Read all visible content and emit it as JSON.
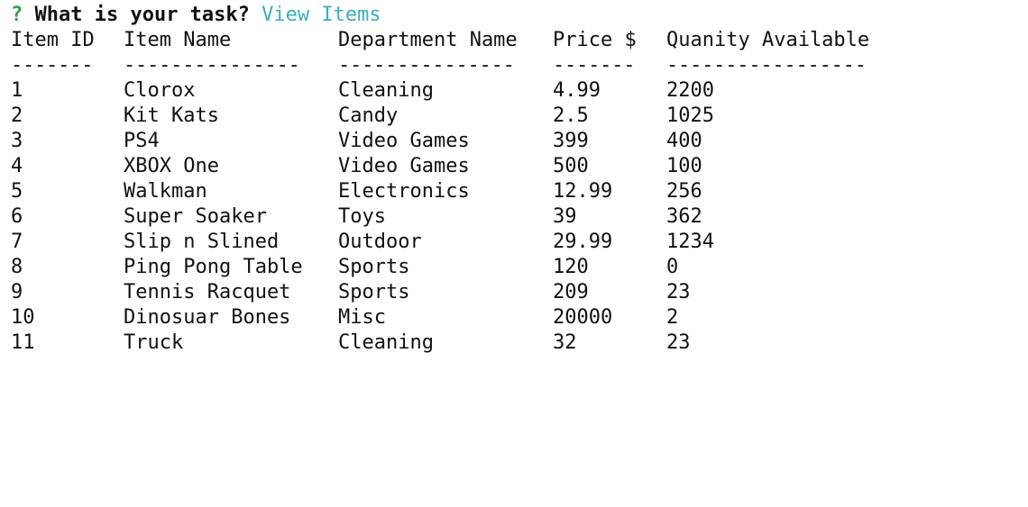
{
  "prompt": {
    "mark": "?",
    "question": "What is your task?",
    "answer": "View Items"
  },
  "table": {
    "headers": [
      "Item ID",
      "Item Name",
      "Department Name",
      "Price $",
      "Quanity Available"
    ],
    "separators": [
      "-------",
      "---------------",
      "---------------",
      "-------",
      "-----------------"
    ],
    "rows": [
      [
        "1",
        "Clorox",
        "Cleaning",
        "4.99",
        "2200"
      ],
      [
        "2",
        "Kit Kats",
        "Candy",
        "2.5",
        "1025"
      ],
      [
        "3",
        "PS4",
        "Video Games",
        "399",
        "400"
      ],
      [
        "4",
        "XBOX One",
        "Video Games",
        "500",
        "100"
      ],
      [
        "5",
        "Walkman",
        "Electronics",
        "12.99",
        "256"
      ],
      [
        "6",
        "Super Soaker",
        "Toys",
        "39",
        "362"
      ],
      [
        "7",
        "Slip n Slined",
        "Outdoor",
        "29.99",
        "1234"
      ],
      [
        "8",
        "Ping Pong Table",
        "Sports",
        "120",
        "0"
      ],
      [
        "9",
        "Tennis Racquet",
        "Sports",
        "209",
        "23"
      ],
      [
        "10",
        "Dinosuar Bones",
        "Misc",
        "20000",
        "2"
      ],
      [
        "11",
        "Truck",
        "Cleaning",
        "32",
        "23"
      ]
    ]
  },
  "colors": {
    "prompt_mark": "#2e9e45",
    "answer": "#3ab0b8",
    "text": "#111111",
    "background": "#ffffff"
  }
}
